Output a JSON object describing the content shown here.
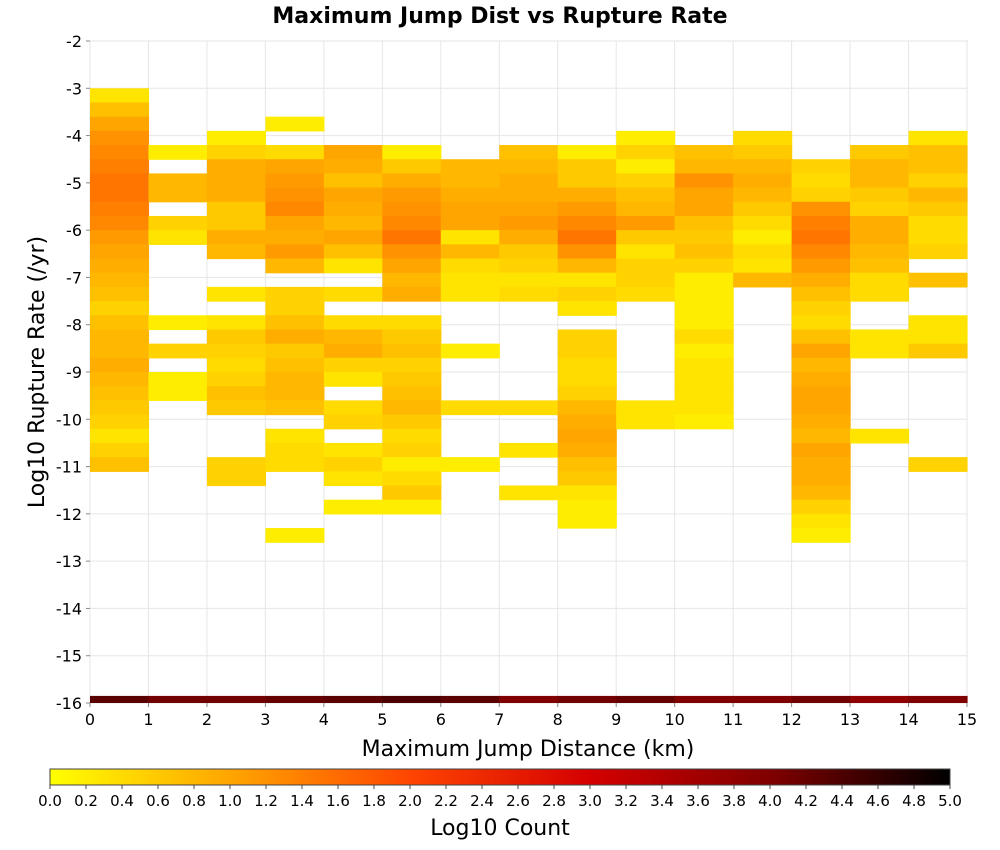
{
  "chart_data": {
    "type": "heatmap",
    "title": "Maximum Jump Dist vs Rupture Rate",
    "xlabel": "Maximum Jump Distance (km)",
    "ylabel": "Log10 Rupture Rate (/yr)",
    "xlim": [
      0,
      15
    ],
    "ylim": [
      -16,
      -2
    ],
    "x_ticks": [
      "0",
      "1",
      "2",
      "3",
      "4",
      "5",
      "6",
      "7",
      "8",
      "9",
      "10",
      "11",
      "12",
      "13",
      "14",
      "15"
    ],
    "y_ticks": [
      "-2",
      "-3",
      "-4",
      "-5",
      "-6",
      "-7",
      "-8",
      "-9",
      "-10",
      "-11",
      "-12",
      "-13",
      "-14",
      "-15",
      "-16"
    ],
    "grid": true,
    "bin_width_x": 1,
    "bin_height_y": 0.3,
    "colorbar": {
      "label": "Log10 Count",
      "min": 0.0,
      "max": 5.0,
      "ticks": [
        "0.0",
        "0.2",
        "0.4",
        "0.6",
        "0.8",
        "1.0",
        "1.2",
        "1.4",
        "1.6",
        "1.8",
        "2.0",
        "2.2",
        "2.4",
        "2.6",
        "2.8",
        "3.0",
        "3.2",
        "3.4",
        "3.6",
        "3.8",
        "4.0",
        "4.2",
        "4.4",
        "4.6",
        "4.8",
        "5.0"
      ],
      "colors": [
        "#ffff00",
        "#ffa500",
        "#ff4500",
        "#d40000",
        "#800000",
        "#000000"
      ]
    },
    "columns": [
      {
        "x": 0,
        "cells": [
          [
            -3,
            0.3
          ],
          [
            -3.3,
            0.7
          ],
          [
            -3.6,
            1.0
          ],
          [
            -3.9,
            1.2
          ],
          [
            -4.2,
            1.3
          ],
          [
            -4.5,
            1.4
          ],
          [
            -4.8,
            1.5
          ],
          [
            -5.1,
            1.5
          ],
          [
            -5.4,
            1.4
          ],
          [
            -5.7,
            1.3
          ],
          [
            -6,
            1.1
          ],
          [
            -6.3,
            1.0
          ],
          [
            -6.6,
            0.9
          ],
          [
            -6.9,
            0.8
          ],
          [
            -7.2,
            0.7
          ],
          [
            -7.5,
            0.5
          ],
          [
            -7.8,
            0.7
          ],
          [
            -8.1,
            0.8
          ],
          [
            -8.4,
            0.8
          ],
          [
            -8.7,
            0.9
          ],
          [
            -9,
            0.8
          ],
          [
            -9.3,
            0.7
          ],
          [
            -9.6,
            0.6
          ],
          [
            -9.9,
            0.5
          ],
          [
            -10.2,
            0.3
          ],
          [
            -10.5,
            0.5
          ],
          [
            -10.8,
            0.7
          ]
        ]
      },
      {
        "x": 1,
        "cells": [
          [
            -4.2,
            0.2
          ],
          [
            -4.8,
            0.8
          ],
          [
            -5.1,
            0.8
          ],
          [
            -5.7,
            0.5
          ],
          [
            -6,
            0.3
          ],
          [
            -7.8,
            0.2
          ],
          [
            -8.4,
            0.5
          ],
          [
            -9,
            0.2
          ],
          [
            -9.3,
            0.2
          ]
        ]
      },
      {
        "x": 2,
        "cells": [
          [
            -3.9,
            0.2
          ],
          [
            -4.2,
            0.5
          ],
          [
            -4.5,
            0.9
          ],
          [
            -4.8,
            0.9
          ],
          [
            -5.1,
            0.9
          ],
          [
            -5.4,
            0.6
          ],
          [
            -5.7,
            0.6
          ],
          [
            -6,
            0.9
          ],
          [
            -6.3,
            0.8
          ],
          [
            -7.2,
            0.3
          ],
          [
            -7.8,
            0.3
          ],
          [
            -8.1,
            0.6
          ],
          [
            -8.4,
            0.5
          ],
          [
            -8.7,
            0.4
          ],
          [
            -9,
            0.5
          ],
          [
            -9.3,
            0.7
          ],
          [
            -9.6,
            0.6
          ],
          [
            -10.8,
            0.5
          ],
          [
            -11.1,
            0.5
          ]
        ]
      },
      {
        "x": 3,
        "cells": [
          [
            -3.6,
            0.2
          ],
          [
            -4.2,
            0.4
          ],
          [
            -4.5,
            1.0
          ],
          [
            -4.8,
            1.1
          ],
          [
            -5.1,
            1.2
          ],
          [
            -5.4,
            1.3
          ],
          [
            -5.7,
            1.0
          ],
          [
            -6,
            0.9
          ],
          [
            -6.3,
            1.1
          ],
          [
            -6.6,
            0.8
          ],
          [
            -7.2,
            0.5
          ],
          [
            -7.5,
            0.5
          ],
          [
            -7.8,
            0.7
          ],
          [
            -8.1,
            0.9
          ],
          [
            -8.4,
            0.6
          ],
          [
            -8.7,
            0.7
          ],
          [
            -9,
            0.8
          ],
          [
            -9.3,
            0.8
          ],
          [
            -9.6,
            0.7
          ],
          [
            -10.2,
            0.3
          ],
          [
            -10.5,
            0.4
          ],
          [
            -10.8,
            0.4
          ],
          [
            -12.3,
            0.2
          ]
        ]
      },
      {
        "x": 4,
        "cells": [
          [
            -4.2,
            1.0
          ],
          [
            -4.5,
            0.9
          ],
          [
            -4.8,
            0.7
          ],
          [
            -5.1,
            1.0
          ],
          [
            -5.4,
            0.9
          ],
          [
            -5.7,
            0.8
          ],
          [
            -6,
            1.0
          ],
          [
            -6.3,
            0.7
          ],
          [
            -6.6,
            0.3
          ],
          [
            -7.2,
            0.4
          ],
          [
            -7.8,
            0.4
          ],
          [
            -8.1,
            0.8
          ],
          [
            -8.4,
            0.9
          ],
          [
            -8.7,
            0.5
          ],
          [
            -9.0,
            0.3
          ],
          [
            -9.6,
            0.4
          ],
          [
            -9.9,
            0.5
          ],
          [
            -10.5,
            0.3
          ],
          [
            -10.8,
            0.5
          ],
          [
            -11.1,
            0.3
          ],
          [
            -11.7,
            0.2
          ]
        ]
      },
      {
        "x": 5,
        "cells": [
          [
            -4.2,
            0.2
          ],
          [
            -4.5,
            0.6
          ],
          [
            -4.8,
            0.9
          ],
          [
            -5.1,
            1.1
          ],
          [
            -5.4,
            1.2
          ],
          [
            -5.7,
            1.3
          ],
          [
            -6,
            1.5
          ],
          [
            -6.3,
            1.2
          ],
          [
            -6.6,
            1.0
          ],
          [
            -6.9,
            0.8
          ],
          [
            -7.2,
            0.9
          ],
          [
            -7.8,
            0.4
          ],
          [
            -8.1,
            0.6
          ],
          [
            -8.4,
            0.7
          ],
          [
            -8.7,
            0.5
          ],
          [
            -9,
            0.6
          ],
          [
            -9.3,
            0.7
          ],
          [
            -9.6,
            0.8
          ],
          [
            -9.9,
            0.6
          ],
          [
            -10.2,
            0.4
          ],
          [
            -10.5,
            0.5
          ],
          [
            -10.8,
            0.2
          ],
          [
            -11.1,
            0.4
          ],
          [
            -11.4,
            0.6
          ],
          [
            -11.7,
            0.2
          ]
        ]
      },
      {
        "x": 6,
        "cells": [
          [
            -4.5,
            0.8
          ],
          [
            -4.8,
            0.8
          ],
          [
            -5.1,
            0.9
          ],
          [
            -5.4,
            1.0
          ],
          [
            -5.7,
            1.0
          ],
          [
            -6,
            0.3
          ],
          [
            -6.3,
            0.8
          ],
          [
            -6.6,
            0.4
          ],
          [
            -6.9,
            0.3
          ],
          [
            -7.2,
            0.3
          ],
          [
            -8.4,
            0.2
          ],
          [
            -9.6,
            0.4
          ],
          [
            -10.8,
            0.2
          ]
        ]
      },
      {
        "x": 7,
        "cells": [
          [
            -4.2,
            0.7
          ],
          [
            -4.5,
            0.8
          ],
          [
            -4.8,
            0.9
          ],
          [
            -5.1,
            0.9
          ],
          [
            -5.4,
            1.0
          ],
          [
            -5.7,
            1.1
          ],
          [
            -6,
            0.9
          ],
          [
            -6.3,
            0.6
          ],
          [
            -6.6,
            0.5
          ],
          [
            -6.9,
            0.3
          ],
          [
            -7.2,
            0.4
          ],
          [
            -9.6,
            0.4
          ],
          [
            -10.5,
            0.3
          ],
          [
            -11.4,
            0.3
          ]
        ]
      },
      {
        "x": 8,
        "cells": [
          [
            -4.2,
            0.2
          ],
          [
            -4.5,
            0.6
          ],
          [
            -4.8,
            0.6
          ],
          [
            -5.1,
            0.9
          ],
          [
            -5.4,
            1.1
          ],
          [
            -5.7,
            1.3
          ],
          [
            -6,
            1.5
          ],
          [
            -6.3,
            1.2
          ],
          [
            -6.6,
            0.8
          ],
          [
            -6.9,
            0.3
          ],
          [
            -7.2,
            0.5
          ],
          [
            -7.5,
            0.3
          ],
          [
            -8.1,
            0.5
          ],
          [
            -8.4,
            0.5
          ],
          [
            -8.7,
            0.4
          ],
          [
            -9,
            0.4
          ],
          [
            -9.3,
            0.5
          ],
          [
            -9.6,
            0.8
          ],
          [
            -9.9,
            0.9
          ],
          [
            -10.2,
            1.0
          ],
          [
            -10.5,
            0.9
          ],
          [
            -10.8,
            0.7
          ],
          [
            -11.1,
            0.6
          ],
          [
            -11.4,
            0.3
          ],
          [
            -11.7,
            0.2
          ],
          [
            -12.0,
            0.2
          ]
        ]
      },
      {
        "x": 9,
        "cells": [
          [
            -3.9,
            0.2
          ],
          [
            -4.2,
            0.5
          ],
          [
            -4.5,
            0.2
          ],
          [
            -4.8,
            0.5
          ],
          [
            -5.1,
            0.7
          ],
          [
            -5.4,
            0.8
          ],
          [
            -5.7,
            1.1
          ],
          [
            -6,
            0.6
          ],
          [
            -6.3,
            0.3
          ],
          [
            -6.6,
            0.5
          ],
          [
            -6.9,
            0.5
          ],
          [
            -7.2,
            0.4
          ],
          [
            -9.6,
            0.3
          ],
          [
            -9.9,
            0.3
          ]
        ]
      },
      {
        "x": 10,
        "cells": [
          [
            -4.2,
            0.7
          ],
          [
            -4.5,
            0.8
          ],
          [
            -4.8,
            1.2
          ],
          [
            -5.1,
            1.0
          ],
          [
            -5.4,
            1.0
          ],
          [
            -5.7,
            0.7
          ],
          [
            -6,
            0.6
          ],
          [
            -6.3,
            0.7
          ],
          [
            -6.6,
            0.5
          ],
          [
            -6.9,
            0.2
          ],
          [
            -7.2,
            0.2
          ],
          [
            -7.5,
            0.2
          ],
          [
            -7.8,
            0.2
          ],
          [
            -8.1,
            0.4
          ],
          [
            -8.4,
            0.2
          ],
          [
            -8.7,
            0.3
          ],
          [
            -9.0,
            0.3
          ],
          [
            -9.3,
            0.3
          ],
          [
            -9.6,
            0.3
          ],
          [
            -9.9,
            0.2
          ]
        ]
      },
      {
        "x": 11,
        "cells": [
          [
            -3.9,
            0.4
          ],
          [
            -4.2,
            0.6
          ],
          [
            -4.5,
            0.8
          ],
          [
            -4.8,
            0.9
          ],
          [
            -5.1,
            0.8
          ],
          [
            -5.4,
            0.6
          ],
          [
            -5.7,
            0.4
          ],
          [
            -6,
            0.2
          ],
          [
            -6.3,
            0.4
          ],
          [
            -6.6,
            0.3
          ],
          [
            -6.9,
            0.8
          ]
        ]
      },
      {
        "x": 12,
        "cells": [
          [
            -4.5,
            0.5
          ],
          [
            -4.8,
            0.4
          ],
          [
            -5.1,
            0.5
          ],
          [
            -5.4,
            1.2
          ],
          [
            -5.7,
            1.4
          ],
          [
            -6,
            1.5
          ],
          [
            -6.3,
            1.3
          ],
          [
            -6.6,
            1.1
          ],
          [
            -6.9,
            0.9
          ],
          [
            -7.2,
            0.7
          ],
          [
            -7.5,
            0.5
          ],
          [
            -7.8,
            0.4
          ],
          [
            -8.1,
            0.7
          ],
          [
            -8.4,
            1.0
          ],
          [
            -8.7,
            0.8
          ],
          [
            -9,
            0.9
          ],
          [
            -9.3,
            1.0
          ],
          [
            -9.6,
            1.0
          ],
          [
            -9.9,
            0.9
          ],
          [
            -10.2,
            0.8
          ],
          [
            -10.5,
            1.0
          ],
          [
            -10.8,
            0.9
          ],
          [
            -11.1,
            0.9
          ],
          [
            -11.4,
            0.8
          ],
          [
            -11.7,
            0.5
          ],
          [
            -12.0,
            0.3
          ],
          [
            -12.3,
            0.2
          ]
        ]
      },
      {
        "x": 13,
        "cells": [
          [
            -4.2,
            0.6
          ],
          [
            -4.5,
            0.8
          ],
          [
            -4.8,
            0.8
          ],
          [
            -5.1,
            0.6
          ],
          [
            -5.4,
            0.5
          ],
          [
            -5.7,
            0.9
          ],
          [
            -6,
            0.9
          ],
          [
            -6.3,
            0.8
          ],
          [
            -6.6,
            0.7
          ],
          [
            -6.9,
            0.4
          ],
          [
            -7.2,
            0.4
          ],
          [
            -8.1,
            0.3
          ],
          [
            -8.4,
            0.3
          ],
          [
            -10.2,
            0.3
          ]
        ]
      },
      {
        "x": 14,
        "cells": [
          [
            -3.9,
            0.3
          ],
          [
            -4.2,
            0.7
          ],
          [
            -4.5,
            0.7
          ],
          [
            -4.8,
            0.5
          ],
          [
            -5.1,
            0.8
          ],
          [
            -5.4,
            0.6
          ],
          [
            -5.7,
            0.4
          ],
          [
            -6,
            0.4
          ],
          [
            -6.3,
            0.5
          ],
          [
            -6.9,
            0.7
          ],
          [
            -7.8,
            0.3
          ],
          [
            -8.1,
            0.3
          ],
          [
            -8.4,
            0.6
          ],
          [
            -10.8,
            0.5
          ]
        ]
      }
    ],
    "bottom_row": {
      "y": -16,
      "values": [
        4.3,
        4.1,
        4.1,
        4.2,
        4.3,
        4.4,
        4.3,
        4.0,
        4.1,
        4.2,
        4.0,
        4.0,
        4.1,
        3.8,
        4.0
      ]
    }
  }
}
